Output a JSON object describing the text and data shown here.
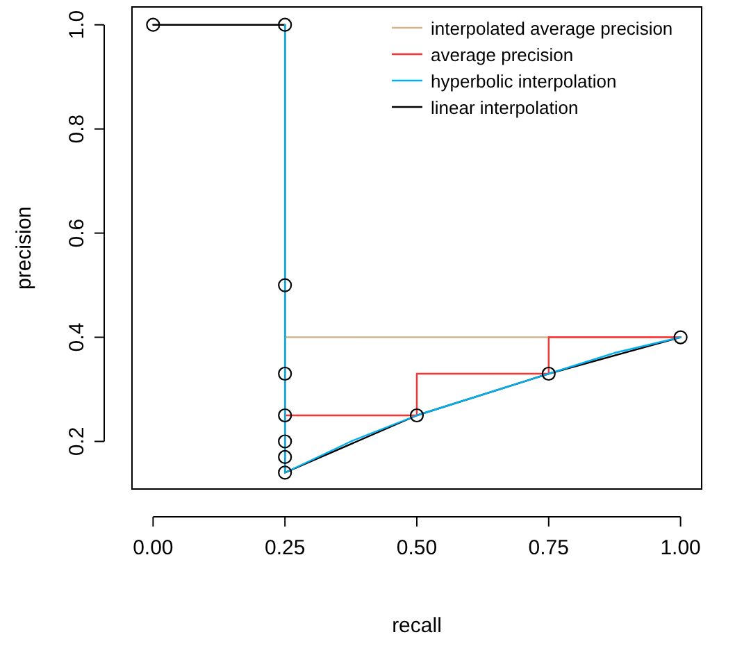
{
  "chart_data": {
    "type": "line",
    "xlabel": "recall",
    "ylabel": "precision",
    "xlim": [
      -0.04,
      1.04
    ],
    "ylim": [
      0.1086,
      1.0343
    ],
    "xticks": [
      {
        "value": 0,
        "label": "0.00"
      },
      {
        "value": 0.25,
        "label": "0.25"
      },
      {
        "value": 0.5,
        "label": "0.50"
      },
      {
        "value": 0.75,
        "label": "0.75"
      },
      {
        "value": 1,
        "label": "1.00"
      }
    ],
    "yticks": [
      0.2,
      0.4,
      0.6,
      0.8,
      {
        "value": 1,
        "label": "1.0"
      }
    ],
    "grid": false,
    "legend": "top right",
    "line_style": "solid",
    "marker": "none",
    "series": [
      {
        "name": "interpolated average precision",
        "color": "#d2b48c",
        "x": [
          0.25,
          1
        ],
        "values": [
          0.4,
          0.4
        ]
      },
      {
        "name": "average precision",
        "color": "#ff3030",
        "x": [
          0.25,
          0.5,
          0.5,
          0.75,
          0.75,
          1
        ],
        "values": [
          0.25,
          0.25,
          0.33,
          0.33,
          0.4,
          0.4
        ]
      },
      {
        "name": "hyperbolic interpolation",
        "color": "#00b0f0",
        "x": [
          0.25,
          0.25,
          0.375,
          0.5,
          0.625,
          0.75,
          0.875,
          1
        ],
        "values": [
          1,
          0.14,
          0.2,
          0.25,
          0.29,
          0.33,
          0.37,
          0.4
        ]
      },
      {
        "name": "linear interpolation",
        "color": "#000000",
        "x": [
          0,
          0.25,
          0.25,
          0.5,
          0.75,
          1
        ],
        "values": [
          1,
          1,
          0.14,
          0.25,
          0.33,
          0.4
        ]
      },
      {
        "type": "scatter",
        "color": "#000000",
        "marker": "circle",
        "x": [
          0,
          0.25,
          0.25,
          0.25,
          0.25,
          0.25,
          0.25,
          0.25,
          0.5,
          0.75,
          1
        ],
        "values": [
          1,
          1,
          0.5,
          0.33,
          0.25,
          0.2,
          0.17,
          0.14,
          0.25,
          0.33,
          0.4
        ]
      }
    ]
  }
}
